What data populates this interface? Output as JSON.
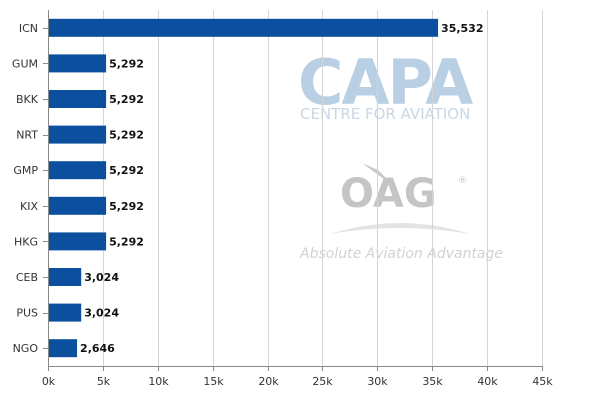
{
  "chart_data": {
    "type": "bar",
    "orientation": "horizontal",
    "categories": [
      "ICN",
      "GUM",
      "BKK",
      "NRT",
      "GMP",
      "KIX",
      "HKG",
      "CEB",
      "PUS",
      "NGO"
    ],
    "values": [
      35532,
      5292,
      5292,
      5292,
      5292,
      5292,
      5292,
      3024,
      3024,
      2646
    ],
    "value_labels": [
      "35,532",
      "5,292",
      "5,292",
      "5,292",
      "5,292",
      "5,292",
      "5,292",
      "3,024",
      "3,024",
      "2,646"
    ],
    "x_ticks": [
      0,
      5000,
      10000,
      15000,
      20000,
      25000,
      30000,
      35000,
      40000,
      45000
    ],
    "x_tick_labels": [
      "0k",
      "5k",
      "10k",
      "15k",
      "20k",
      "25k",
      "30k",
      "35k",
      "40k",
      "45k"
    ],
    "xlim": [
      0,
      45000
    ],
    "grid": true,
    "legend": "none",
    "title": "",
    "xlabel": "",
    "ylabel": "",
    "colors": {
      "bar": "#0b4f9e",
      "grid": "#d4d4d4",
      "axis": "#888888"
    }
  },
  "watermarks": {
    "capa": "CAPA",
    "capa_sub": "CENTRE FOR AVIATION",
    "oag": "OAG",
    "oag_registered": "®",
    "oag_slogan": "Absolute Aviation Advantage"
  }
}
